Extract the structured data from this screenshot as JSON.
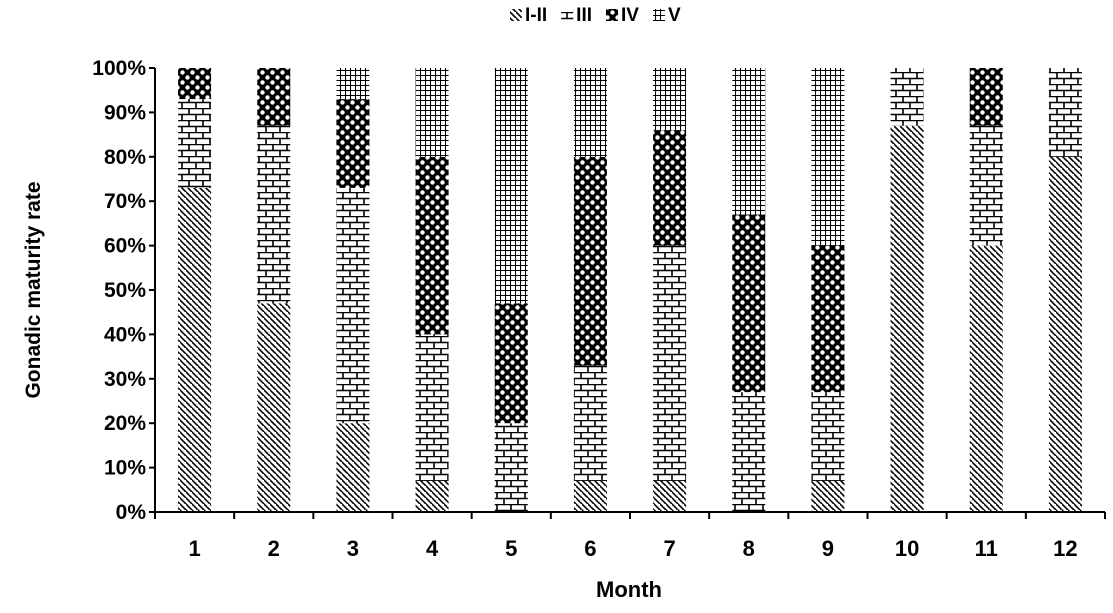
{
  "chart_data": {
    "type": "bar",
    "stacked": true,
    "normalized": true,
    "title": "",
    "xlabel": "Month",
    "ylabel": "Gonadic maturity rate",
    "categories": [
      "1",
      "2",
      "3",
      "4",
      "5",
      "6",
      "7",
      "8",
      "9",
      "10",
      "11",
      "12"
    ],
    "ylim": [
      0,
      100
    ],
    "yticks": [
      "0%",
      "10%",
      "20%",
      "30%",
      "40%",
      "50%",
      "60%",
      "70%",
      "80%",
      "90%",
      "100%"
    ],
    "legend_position": "top",
    "grid": false,
    "series": [
      {
        "name": "I-II",
        "pattern": "diagonal-hatch",
        "values": [
          73,
          47,
          20,
          7,
          0,
          7,
          7,
          0,
          7,
          87,
          60,
          80
        ]
      },
      {
        "name": "III",
        "pattern": "brick",
        "values": [
          20,
          40,
          53,
          33,
          20,
          26,
          53,
          27,
          20,
          13,
          27,
          20
        ]
      },
      {
        "name": "IV",
        "pattern": "dots",
        "values": [
          7,
          13,
          20,
          40,
          27,
          47,
          26,
          40,
          33,
          0,
          13,
          0
        ]
      },
      {
        "name": "V",
        "pattern": "grid",
        "values": [
          0,
          0,
          7,
          20,
          53,
          20,
          14,
          33,
          40,
          0,
          0,
          0
        ]
      }
    ]
  }
}
